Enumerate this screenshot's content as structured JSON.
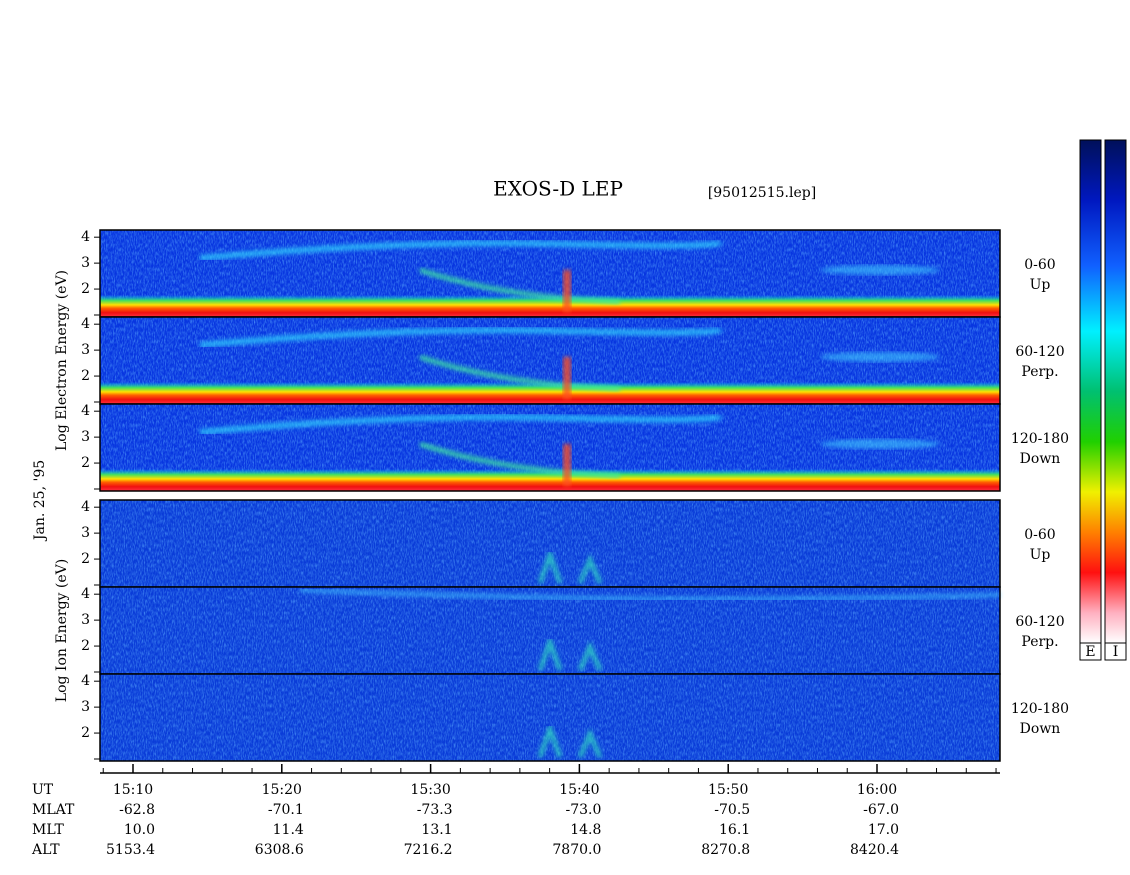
{
  "title": "EXOS-D LEP",
  "file": "[95012515.lep]",
  "date": "Jan. 25, '95",
  "ylim": [
    1,
    4.2
  ],
  "yticks": [
    2,
    3,
    4
  ],
  "groups": [
    {
      "ylabel": "Log  Electron  Energy (eV)",
      "panels": [
        {
          "angle": "0-60",
          "direction": "Up"
        },
        {
          "angle": "60-120",
          "direction": "Perp."
        },
        {
          "angle": "120-180",
          "direction": "Down"
        }
      ]
    },
    {
      "ylabel": "Log  Ion  Energy (eV)",
      "panels": [
        {
          "angle": "0-60",
          "direction": "Up"
        },
        {
          "angle": "60-120",
          "direction": "Perp."
        },
        {
          "angle": "120-180",
          "direction": "Down"
        }
      ]
    }
  ],
  "colorbars": [
    "E",
    "I"
  ],
  "x_axis": {
    "times": [
      "15:10",
      "15:20",
      "15:30",
      "15:40",
      "15:50",
      "16:00"
    ],
    "rows": [
      {
        "label": "UT"
      },
      {
        "label": "MLAT",
        "values": [
          "-62.8",
          "-70.1",
          "-73.3",
          "-73.0",
          "-70.5",
          "-67.0"
        ]
      },
      {
        "label": "MLT",
        "values": [
          "10.0",
          "11.4",
          "13.1",
          "14.8",
          "16.1",
          "17.0"
        ]
      },
      {
        "label": "ALT",
        "values": [
          "5153.4",
          "6308.6",
          "7216.2",
          "7870.0",
          "8270.8",
          "8420.4"
        ]
      }
    ]
  }
}
